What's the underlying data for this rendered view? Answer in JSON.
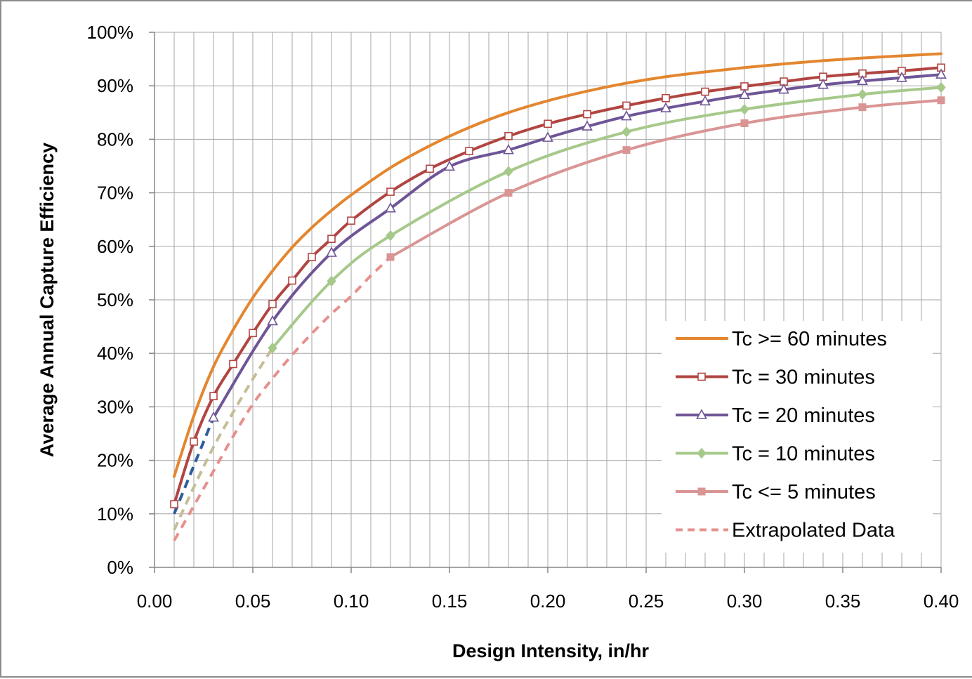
{
  "chart_data": {
    "type": "line",
    "title": "",
    "xlabel": "Design Intensity,  in/hr",
    "ylabel": "Average Annual Capture Efficiency",
    "xlim": [
      0,
      0.4
    ],
    "ylim": [
      0,
      1
    ],
    "x_ticks": [
      "0.00",
      "0.05",
      "0.10",
      "0.15",
      "0.20",
      "0.25",
      "0.30",
      "0.35",
      "0.40"
    ],
    "y_ticks": [
      "0%",
      "10%",
      "20%",
      "30%",
      "40%",
      "50%",
      "60%",
      "70%",
      "80%",
      "90%",
      "100%"
    ],
    "grid": true,
    "legend_position": "bottom-right",
    "series": [
      {
        "name": "Tc >= 60 minutes",
        "color": "#e3862f",
        "marker": "none",
        "x": [
          0.01,
          0.02,
          0.03,
          0.04,
          0.05,
          0.06,
          0.07,
          0.08,
          0.09,
          0.1,
          0.12,
          0.14,
          0.16,
          0.18,
          0.2,
          0.22,
          0.24,
          0.26,
          0.28,
          0.3,
          0.32,
          0.34,
          0.36,
          0.38,
          0.4
        ],
        "y": [
          0.17,
          0.283,
          0.375,
          0.444,
          0.504,
          0.554,
          0.598,
          0.635,
          0.667,
          0.696,
          0.747,
          0.788,
          0.822,
          0.85,
          0.872,
          0.89,
          0.905,
          0.917,
          0.926,
          0.934,
          0.941,
          0.947,
          0.952,
          0.956,
          0.96
        ]
      },
      {
        "name": "Tc = 30 minutes",
        "color": "#b14541",
        "marker": "open-square",
        "x": [
          0.01,
          0.02,
          0.03,
          0.04,
          0.05,
          0.06,
          0.07,
          0.08,
          0.09,
          0.1,
          0.12,
          0.14,
          0.16,
          0.18,
          0.2,
          0.22,
          0.24,
          0.26,
          0.28,
          0.3,
          0.32,
          0.34,
          0.36,
          0.38,
          0.4
        ],
        "y": [
          0.118,
          0.235,
          0.32,
          0.38,
          0.438,
          0.492,
          0.536,
          0.58,
          0.614,
          0.648,
          0.702,
          0.745,
          0.778,
          0.806,
          0.829,
          0.847,
          0.863,
          0.877,
          0.889,
          0.899,
          0.908,
          0.917,
          0.923,
          0.928,
          0.934
        ]
      },
      {
        "name": "Tc = 20 minutes",
        "color": "#6e5596",
        "marker": "open-triangle",
        "x": [
          0.03,
          0.06,
          0.09,
          0.12,
          0.15,
          0.18,
          0.2,
          0.22,
          0.24,
          0.26,
          0.28,
          0.3,
          0.32,
          0.34,
          0.36,
          0.38,
          0.4
        ],
        "y": [
          0.28,
          0.46,
          0.588,
          0.671,
          0.749,
          0.78,
          0.803,
          0.824,
          0.843,
          0.858,
          0.871,
          0.883,
          0.893,
          0.902,
          0.909,
          0.915,
          0.921
        ]
      },
      {
        "name": "Tc = 10 minutes",
        "color": "#a6c98a",
        "marker": "diamond",
        "x": [
          0.06,
          0.09,
          0.12,
          0.18,
          0.24,
          0.3,
          0.36,
          0.4
        ],
        "y": [
          0.41,
          0.535,
          0.62,
          0.74,
          0.814,
          0.856,
          0.884,
          0.897
        ]
      },
      {
        "name": "Tc <= 5 minutes",
        "color": "#d99594",
        "marker": "square",
        "x": [
          0.12,
          0.18,
          0.24,
          0.3,
          0.36,
          0.4
        ],
        "y": [
          0.58,
          0.7,
          0.78,
          0.83,
          0.86,
          0.873
        ]
      },
      {
        "name": "Extrapolated Data",
        "color": "#e6908d",
        "marker": "none",
        "dashed": true,
        "x": [
          0.01,
          0.02,
          0.03,
          0.04,
          0.05,
          0.06,
          0.07,
          0.08,
          0.09,
          0.1,
          0.11,
          0.12
        ],
        "y": [
          0.05,
          0.115,
          0.18,
          0.245,
          0.305,
          0.353,
          0.397,
          0.437,
          0.474,
          0.507,
          0.545,
          0.58
        ]
      }
    ],
    "extrapolated_segments": [
      {
        "series": "Tc = 20 minutes",
        "color": "#2e5c9a",
        "x": [
          0.01,
          0.02,
          0.03
        ],
        "y": [
          0.1,
          0.19,
          0.28
        ]
      },
      {
        "series": "Tc = 10 minutes",
        "color": "#c4bd97",
        "x": [
          0.01,
          0.02,
          0.03,
          0.04,
          0.05,
          0.06
        ],
        "y": [
          0.07,
          0.15,
          0.225,
          0.29,
          0.352,
          0.41
        ]
      }
    ]
  }
}
